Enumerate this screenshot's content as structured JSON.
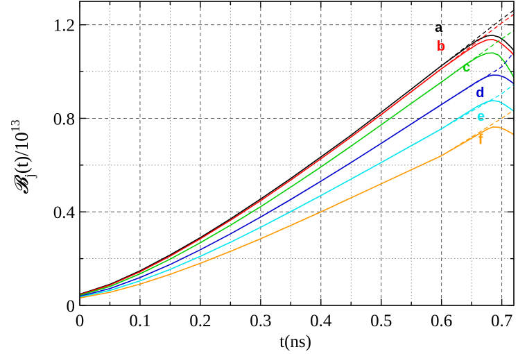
{
  "chart_data": {
    "type": "line",
    "xlabel": "t(ns)",
    "ylabel": {
      "symbol": "𝓑",
      "subscript": "j",
      "text": "(t)/10",
      "superscript": "13"
    },
    "xlim": [
      0,
      0.72
    ],
    "ylim": [
      0,
      1.3
    ],
    "x_ticks": [
      {
        "value": 0,
        "label": "0"
      },
      {
        "value": 0.1,
        "label": "0.1"
      },
      {
        "value": 0.2,
        "label": "0.2"
      },
      {
        "value": 0.3,
        "label": "0.3"
      },
      {
        "value": 0.4,
        "label": "0.4"
      },
      {
        "value": 0.5,
        "label": "0.5"
      },
      {
        "value": 0.6,
        "label": "0.6"
      },
      {
        "value": 0.7,
        "label": "0.7"
      }
    ],
    "y_ticks": [
      {
        "value": 0,
        "label": "0"
      },
      {
        "value": 0.4,
        "label": "0.4"
      },
      {
        "value": 0.8,
        "label": "0.8"
      },
      {
        "value": 1.2,
        "label": "1.2"
      }
    ],
    "grid": {
      "major_dashed": true,
      "minor_dotted": true
    },
    "series": [
      {
        "name": "a",
        "color": "#000000",
        "solid": {
          "x": [
            0,
            0.05,
            0.1,
            0.15,
            0.2,
            0.25,
            0.3,
            0.35,
            0.4,
            0.45,
            0.5,
            0.55,
            0.6,
            0.64,
            0.66,
            0.675,
            0.685,
            0.695,
            0.705,
            0.715,
            0.72
          ],
          "y": [
            0.048,
            0.09,
            0.148,
            0.216,
            0.29,
            0.37,
            0.455,
            0.543,
            0.635,
            0.728,
            0.826,
            0.925,
            1.025,
            1.1,
            1.135,
            1.152,
            1.155,
            1.148,
            1.13,
            1.105,
            1.09
          ]
        },
        "dashed": {
          "x": [
            0.55,
            0.6,
            0.65,
            0.7,
            0.72
          ],
          "y": [
            0.925,
            1.025,
            1.125,
            1.225,
            1.262
          ]
        }
      },
      {
        "name": "b",
        "color": "#ff0000",
        "solid": {
          "x": [
            0,
            0.05,
            0.1,
            0.15,
            0.2,
            0.25,
            0.3,
            0.35,
            0.4,
            0.45,
            0.5,
            0.55,
            0.6,
            0.64,
            0.66,
            0.675,
            0.685,
            0.695,
            0.705,
            0.715,
            0.72
          ],
          "y": [
            0.046,
            0.087,
            0.144,
            0.211,
            0.285,
            0.364,
            0.448,
            0.536,
            0.627,
            0.72,
            0.816,
            0.914,
            1.012,
            1.085,
            1.118,
            1.135,
            1.137,
            1.128,
            1.108,
            1.085,
            1.07
          ]
        },
        "dashed": {
          "x": [
            0.55,
            0.6,
            0.65,
            0.7,
            0.72
          ],
          "y": [
            0.914,
            1.012,
            1.11,
            1.208,
            1.245
          ]
        }
      },
      {
        "name": "c",
        "color": "#00cc00",
        "solid": {
          "x": [
            0,
            0.05,
            0.1,
            0.15,
            0.2,
            0.25,
            0.3,
            0.35,
            0.4,
            0.45,
            0.5,
            0.55,
            0.6,
            0.64,
            0.66,
            0.675,
            0.685,
            0.695,
            0.705,
            0.715,
            0.72
          ],
          "y": [
            0.043,
            0.081,
            0.135,
            0.198,
            0.268,
            0.343,
            0.422,
            0.506,
            0.592,
            0.681,
            0.772,
            0.864,
            0.955,
            1.03,
            1.062,
            1.078,
            1.08,
            1.07,
            1.04,
            0.998,
            0.975
          ]
        },
        "dashed": {
          "x": [
            0.55,
            0.6,
            0.65,
            0.7,
            0.72
          ],
          "y": [
            0.864,
            0.955,
            1.048,
            1.14,
            1.175
          ]
        }
      },
      {
        "name": "d",
        "color": "#0000cc",
        "solid": {
          "x": [
            0,
            0.05,
            0.1,
            0.15,
            0.2,
            0.25,
            0.3,
            0.35,
            0.4,
            0.45,
            0.5,
            0.55,
            0.6,
            0.64,
            0.66,
            0.675,
            0.685,
            0.695,
            0.705,
            0.715,
            0.72
          ],
          "y": [
            0.039,
            0.072,
            0.119,
            0.175,
            0.238,
            0.306,
            0.378,
            0.453,
            0.531,
            0.611,
            0.693,
            0.776,
            0.859,
            0.925,
            0.958,
            0.978,
            0.985,
            0.984,
            0.975,
            0.958,
            0.948
          ]
        },
        "dashed": {
          "x": [
            0.55,
            0.6,
            0.65,
            0.7,
            0.72
          ],
          "y": [
            0.776,
            0.859,
            0.94,
            1.02,
            1.082
          ]
        }
      },
      {
        "name": "e",
        "color": "#00e5ee",
        "solid": {
          "x": [
            0,
            0.05,
            0.1,
            0.15,
            0.2,
            0.25,
            0.3,
            0.35,
            0.4,
            0.45,
            0.5,
            0.55,
            0.6,
            0.64,
            0.66,
            0.675,
            0.685,
            0.695,
            0.705,
            0.715,
            0.72
          ],
          "y": [
            0.036,
            0.064,
            0.105,
            0.154,
            0.21,
            0.27,
            0.334,
            0.401,
            0.47,
            0.54,
            0.611,
            0.683,
            0.755,
            0.82,
            0.852,
            0.87,
            0.876,
            0.872,
            0.858,
            0.84,
            0.83
          ]
        },
        "dashed": {
          "x": [
            0.55,
            0.6,
            0.65,
            0.7,
            0.72
          ],
          "y": [
            0.683,
            0.755,
            0.83,
            0.905,
            0.945
          ]
        }
      },
      {
        "name": "f",
        "color": "#ff9900",
        "solid": {
          "x": [
            0,
            0.05,
            0.1,
            0.15,
            0.2,
            0.25,
            0.3,
            0.35,
            0.4,
            0.45,
            0.5,
            0.55,
            0.6,
            0.64,
            0.66,
            0.675,
            0.685,
            0.695,
            0.705,
            0.715,
            0.72
          ],
          "y": [
            0.032,
            0.056,
            0.091,
            0.133,
            0.18,
            0.231,
            0.285,
            0.342,
            0.4,
            0.46,
            0.52,
            0.58,
            0.64,
            0.7,
            0.73,
            0.752,
            0.763,
            0.762,
            0.752,
            0.738,
            0.73
          ]
        },
        "dashed": {
          "x": [
            0.55,
            0.6,
            0.65,
            0.7,
            0.72
          ],
          "y": [
            0.58,
            0.64,
            0.72,
            0.8,
            0.835
          ]
        }
      }
    ]
  }
}
